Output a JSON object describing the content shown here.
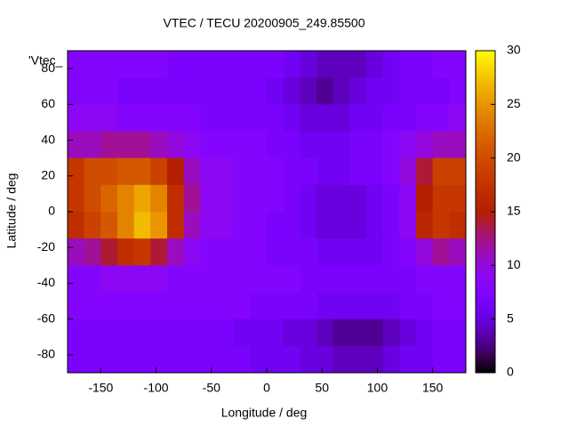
{
  "chart_data": {
    "type": "heatmap",
    "title": "VTEC / TECU 20200905_249.85500",
    "key_label": "'Vtec_",
    "xlabel": "Longitude / deg",
    "ylabel": "Latitude / deg",
    "x": [
      -172.5,
      -157.5,
      -142.5,
      -127.5,
      -112.5,
      -97.5,
      -82.5,
      -67.5,
      -52.5,
      -37.5,
      -22.5,
      -7.5,
      7.5,
      22.5,
      37.5,
      52.5,
      67.5,
      82.5,
      97.5,
      112.5,
      127.5,
      142.5,
      157.5,
      172.5
    ],
    "y": [
      82.5,
      67.5,
      52.5,
      37.5,
      22.5,
      7.5,
      -7.5,
      -22.5,
      -37.5,
      -52.5,
      -67.5,
      -82.5
    ],
    "z": [
      [
        8,
        8,
        8,
        8,
        8,
        8,
        7,
        7,
        7,
        7,
        7,
        7,
        7,
        6,
        5,
        4,
        4,
        4,
        5,
        6,
        7,
        7,
        8,
        8
      ],
      [
        8,
        8,
        8,
        7,
        7,
        7,
        7,
        7,
        7,
        7,
        7,
        7,
        6,
        5,
        4,
        3,
        4,
        5,
        6,
        6,
        7,
        7,
        7,
        8
      ],
      [
        9,
        9,
        9,
        8,
        8,
        8,
        8,
        8,
        7,
        7,
        7,
        7,
        7,
        6,
        5,
        5,
        5,
        6,
        6,
        7,
        7,
        8,
        8,
        9
      ],
      [
        11,
        11,
        12,
        12,
        12,
        11,
        10,
        9,
        8,
        8,
        8,
        8,
        7,
        7,
        6,
        6,
        6,
        7,
        7,
        8,
        9,
        10,
        11,
        11
      ],
      [
        18,
        20,
        20,
        21,
        21,
        19,
        15,
        11,
        9,
        9,
        8,
        8,
        8,
        7,
        7,
        6,
        6,
        7,
        7,
        8,
        10,
        14,
        19,
        19
      ],
      [
        18,
        20,
        22,
        24,
        26,
        24,
        17,
        12,
        9,
        9,
        8,
        8,
        8,
        7,
        6,
        5,
        5,
        5,
        6,
        7,
        9,
        15,
        18,
        18
      ],
      [
        17,
        19,
        21,
        24,
        27,
        25,
        17,
        11,
        9,
        9,
        8,
        8,
        7,
        7,
        6,
        5,
        5,
        5,
        6,
        7,
        9,
        16,
        18,
        17
      ],
      [
        11,
        12,
        14,
        17,
        18,
        14,
        11,
        9,
        8,
        8,
        8,
        8,
        7,
        7,
        7,
        6,
        6,
        6,
        6,
        7,
        8,
        10,
        12,
        11
      ],
      [
        8,
        8,
        9,
        9,
        9,
        9,
        8,
        8,
        8,
        8,
        8,
        8,
        8,
        8,
        7,
        7,
        7,
        7,
        7,
        7,
        7,
        8,
        8,
        8
      ],
      [
        8,
        8,
        8,
        8,
        8,
        8,
        8,
        8,
        8,
        8,
        8,
        7,
        7,
        7,
        7,
        6,
        6,
        6,
        6,
        6,
        7,
        7,
        8,
        8
      ],
      [
        7,
        7,
        7,
        7,
        7,
        7,
        7,
        7,
        7,
        7,
        6,
        6,
        6,
        5,
        5,
        4,
        3,
        3,
        3,
        4,
        5,
        6,
        7,
        7
      ],
      [
        7,
        7,
        7,
        7,
        7,
        7,
        7,
        7,
        7,
        7,
        7,
        6,
        6,
        6,
        5,
        5,
        4,
        4,
        4,
        5,
        6,
        6,
        7,
        7
      ]
    ],
    "xlim": [
      -180,
      180
    ],
    "ylim": [
      -90,
      90
    ],
    "xticks": [
      -150,
      -100,
      -50,
      0,
      50,
      100,
      150
    ],
    "yticks": [
      -80,
      -60,
      -40,
      -20,
      0,
      20,
      40,
      60,
      80
    ],
    "zlim": [
      0,
      30
    ],
    "zticks": [
      0,
      5,
      10,
      15,
      20,
      25,
      30
    ]
  }
}
